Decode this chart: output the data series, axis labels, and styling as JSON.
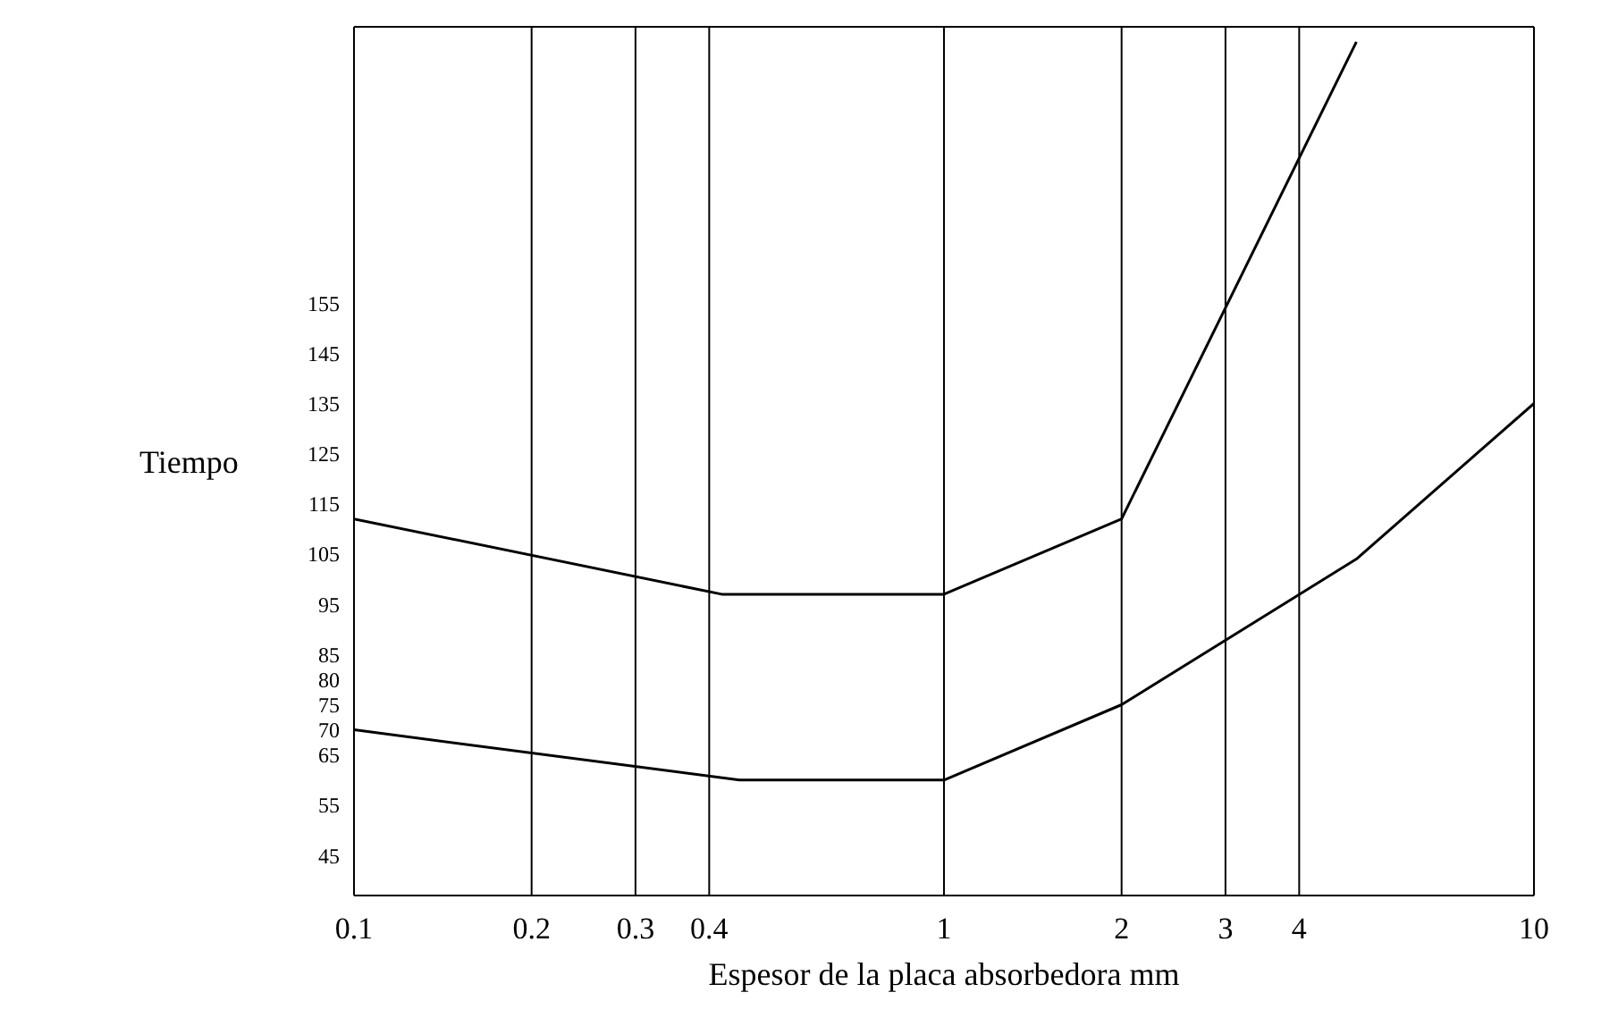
{
  "chart_data": {
    "type": "line",
    "xlabel": "Espesor de la placa absorbedora mm",
    "ylabel": "Tiempo",
    "log": "x",
    "grid": "x",
    "marker": "none",
    "line_style": "solid",
    "xlim": [
      0.1,
      10
    ],
    "xticks": [
      0.1,
      0.2,
      0.3,
      0.4,
      1,
      2,
      3,
      4,
      10
    ],
    "ylim": [
      37,
      210
    ],
    "yticks": [
      45,
      55,
      65,
      70,
      75,
      80,
      85,
      95,
      105,
      115,
      125,
      135,
      145,
      155
    ],
    "series": [
      {
        "color": "#000000",
        "x": [
          0.1,
          0.42,
          1,
          2,
          5
        ],
        "values": [
          112,
          97,
          97,
          112,
          207
        ]
      },
      {
        "color": "#000000",
        "x": [
          0.1,
          0.45,
          1,
          2,
          5,
          10
        ],
        "values": [
          70,
          60,
          60,
          75,
          104,
          135
        ]
      }
    ]
  }
}
